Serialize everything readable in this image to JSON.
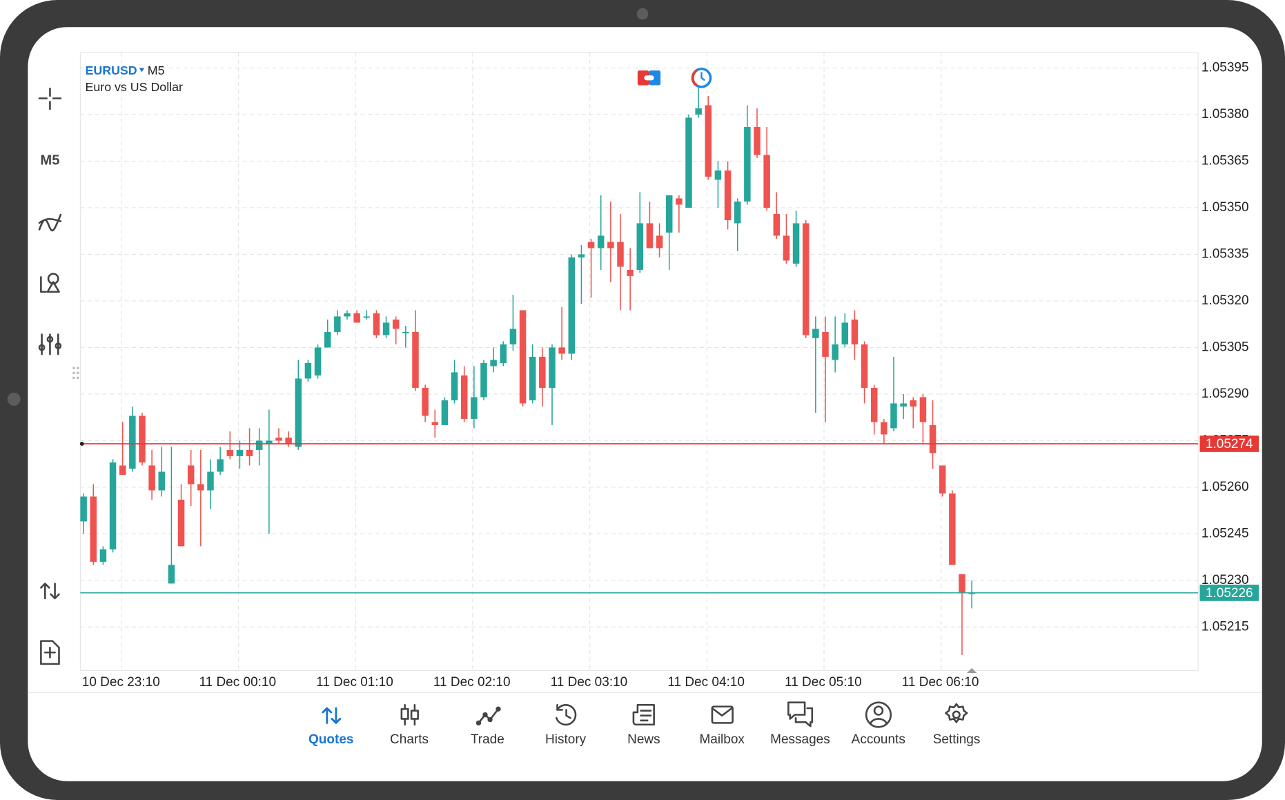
{
  "chart_data": {
    "type": "candlestick",
    "symbol": "EURUSD",
    "timeframe": "M5",
    "description": "Euro vs US Dollar",
    "categories": [
      "10 Dec 23:10",
      null,
      null,
      null,
      null,
      null,
      null,
      null,
      null,
      null,
      null,
      null,
      "11 Dec 00:10",
      null,
      null,
      null,
      null,
      null,
      null,
      null,
      null,
      null,
      null,
      null,
      "11 Dec 01:10",
      null,
      null,
      null,
      null,
      null,
      null,
      null,
      null,
      null,
      null,
      null,
      "11 Dec 02:10",
      null,
      null,
      null,
      null,
      null,
      null,
      null,
      null,
      null,
      null,
      null,
      "11 Dec 03:10",
      null,
      null,
      null,
      null,
      null,
      null,
      null,
      null,
      null,
      null,
      null,
      "11 Dec 04:10",
      null,
      null,
      null,
      null,
      null,
      null,
      null,
      null,
      null,
      null,
      null,
      "11 Dec 05:10",
      null,
      null,
      null,
      null,
      null,
      null,
      null,
      null,
      null,
      null,
      null,
      "11 Dec 06:10",
      null,
      null,
      null,
      null,
      null,
      null,
      null
    ],
    "open": [
      1.05249,
      1.05257,
      1.05236,
      1.0524,
      1.05267,
      1.05266,
      1.05283,
      1.05267,
      1.05259,
      1.05229,
      1.05256,
      1.05267,
      1.05261,
      1.05259,
      1.05265,
      1.05272,
      1.0527,
      1.05272,
      1.05272,
      1.05274,
      1.05276,
      1.05276,
      1.05273,
      1.05295,
      1.05296,
      1.05305,
      1.0531,
      1.05315,
      1.05316,
      1.05315,
      1.05316,
      1.05309,
      1.05314,
      1.0531,
      1.0531,
      1.05292,
      1.05281,
      1.0528,
      1.05288,
      1.05296,
      1.05282,
      1.05289,
      1.05299,
      1.053,
      1.05306,
      1.05317,
      1.05288,
      1.05302,
      1.05292,
      1.05305,
      1.05303,
      1.05334,
      1.05339,
      1.05337,
      1.05339,
      1.05339,
      1.0533,
      1.0533,
      1.05345,
      1.05341,
      1.05342,
      1.05353,
      1.0535,
      1.0538,
      1.05383,
      1.05359,
      1.05362,
      1.05345,
      1.05352,
      1.05376,
      1.05367,
      1.05348,
      1.05341,
      1.05332,
      1.05345,
      1.05308,
      1.0531,
      1.05301,
      1.05306,
      1.05314,
      1.05306,
      1.05292,
      1.05281,
      1.05279,
      1.05286,
      1.05288,
      1.05289,
      1.0528,
      1.05267,
      1.05258,
      1.05232,
      1.05226
    ],
    "high": [
      1.05258,
      1.05261,
      1.05241,
      1.05269,
      1.05281,
      1.05286,
      1.05284,
      1.05272,
      1.05273,
      1.05273,
      1.05261,
      1.05272,
      1.05272,
      1.05269,
      1.05273,
      1.05278,
      1.05275,
      1.05279,
      1.05279,
      1.05285,
      1.05279,
      1.05278,
      1.05301,
      1.05301,
      1.05306,
      1.05314,
      1.05317,
      1.05317,
      1.05317,
      1.05317,
      1.05317,
      1.05315,
      1.05315,
      1.05312,
      1.05317,
      1.05293,
      1.05285,
      1.05289,
      1.05301,
      1.05299,
      1.05299,
      1.05301,
      1.05305,
      1.05307,
      1.05322,
      1.05317,
      1.05306,
      1.05305,
      1.05306,
      1.05318,
      1.05335,
      1.05338,
      1.0534,
      1.05354,
      1.05352,
      1.05348,
      1.05337,
      1.05355,
      1.05352,
      1.05345,
      1.05354,
      1.05354,
      1.0538,
      1.05391,
      1.05386,
      1.05365,
      1.05365,
      1.05353,
      1.05383,
      1.05382,
      1.05376,
      1.05355,
      1.05348,
      1.05349,
      1.05346,
      1.05315,
      1.05315,
      1.05315,
      1.05316,
      1.05317,
      1.05307,
      1.05293,
      1.05282,
      1.05302,
      1.0529,
      1.05289,
      1.0529,
      1.05288,
      1.05267,
      1.05259,
      1.05232,
      1.0523
    ],
    "low": [
      1.05245,
      1.05235,
      1.05235,
      1.05239,
      1.05264,
      1.05265,
      1.05267,
      1.05256,
      1.05257,
      1.05229,
      1.05241,
      1.05254,
      1.05241,
      1.05253,
      1.05264,
      1.05269,
      1.05266,
      1.05267,
      1.05267,
      1.05245,
      1.05274,
      1.05273,
      1.05272,
      1.05294,
      1.05295,
      1.05305,
      1.05309,
      1.05314,
      1.05313,
      1.05314,
      1.05308,
      1.05308,
      1.05306,
      1.05305,
      1.05291,
      1.05281,
      1.05276,
      1.0528,
      1.05287,
      1.05281,
      1.05279,
      1.05288,
      1.05297,
      1.05299,
      1.05304,
      1.05286,
      1.05287,
      1.05286,
      1.0528,
      1.05301,
      1.05301,
      1.05319,
      1.05321,
      1.0533,
      1.05326,
      1.05317,
      1.05317,
      1.05329,
      1.05337,
      1.05334,
      1.0533,
      1.05342,
      1.0535,
      1.05379,
      1.05359,
      1.0535,
      1.05343,
      1.05336,
      1.05351,
      1.05366,
      1.05349,
      1.0534,
      1.05332,
      1.05331,
      1.05308,
      1.05284,
      1.05281,
      1.05297,
      1.05305,
      1.05301,
      1.05287,
      1.05277,
      1.05274,
      1.05278,
      1.05282,
      1.05279,
      1.05274,
      1.05266,
      1.05257,
      1.05235,
      1.05206,
      1.05221
    ],
    "close": [
      1.05257,
      1.05236,
      1.0524,
      1.05268,
      1.05264,
      1.05283,
      1.05268,
      1.05259,
      1.05265,
      1.05235,
      1.05241,
      1.05261,
      1.05259,
      1.05265,
      1.05269,
      1.0527,
      1.05272,
      1.0527,
      1.05275,
      1.05275,
      1.05275,
      1.05274,
      1.05295,
      1.053,
      1.05305,
      1.0531,
      1.05315,
      1.05316,
      1.05313,
      1.05315,
      1.05309,
      1.05313,
      1.05311,
      1.0531,
      1.05292,
      1.05283,
      1.0528,
      1.05288,
      1.05297,
      1.05282,
      1.05289,
      1.053,
      1.05301,
      1.05306,
      1.05311,
      1.05287,
      1.05302,
      1.05292,
      1.05305,
      1.05303,
      1.05334,
      1.05335,
      1.05337,
      1.05341,
      1.05337,
      1.05331,
      1.05328,
      1.05345,
      1.05337,
      1.05337,
      1.05354,
      1.05351,
      1.05379,
      1.05382,
      1.0536,
      1.05362,
      1.05346,
      1.05352,
      1.05376,
      1.05367,
      1.0535,
      1.05341,
      1.05333,
      1.05345,
      1.05309,
      1.05311,
      1.05302,
      1.05306,
      1.05313,
      1.05306,
      1.05292,
      1.05281,
      1.05277,
      1.05287,
      1.05287,
      1.05286,
      1.05281,
      1.05271,
      1.05258,
      1.05235,
      1.05226,
      1.05226
    ],
    "up_color": "#26a69a",
    "down_color": "#ef5350",
    "ylim": [
      1.05201,
      1.054
    ],
    "yticks": [
      1.05395,
      {
        "value": 1.0538,
        "label": "1.05380"
      },
      1.05365,
      {
        "value": 1.0535,
        "label": "1.05350"
      },
      1.05335,
      {
        "value": 1.0532,
        "label": "1.05320"
      },
      1.05305,
      {
        "value": 1.0529,
        "label": "1.05290"
      },
      1.05275,
      {
        "value": 1.0526,
        "label": "1.05260"
      },
      1.05245,
      {
        "value": 1.0523,
        "label": "1.05230"
      },
      1.05215
    ],
    "grid": true,
    "price_lines": [
      {
        "value": 1.05274,
        "color": "#e53935"
      },
      {
        "value": 1.05226,
        "color": "#26a69a"
      }
    ]
  },
  "toolbar": {
    "timeframe": "M5"
  },
  "nav": {
    "items": [
      "Quotes",
      "Charts",
      "Trade",
      "History",
      "News",
      "Mailbox",
      "Messages",
      "Accounts",
      "Settings"
    ],
    "active": 0
  }
}
